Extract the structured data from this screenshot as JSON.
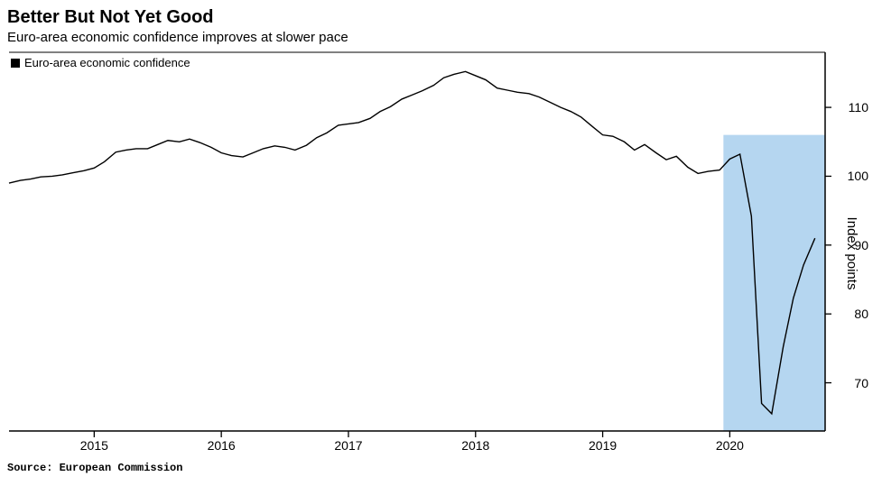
{
  "title": "Better But Not Yet Good",
  "subtitle": "Euro-area economic confidence improves at slower pace",
  "source": "Source: European Commission",
  "chart": {
    "type": "line",
    "legend_label": "Euro-area economic confidence",
    "y_axis_title": "Index points",
    "series_color": "#000000",
    "line_width": 1.4,
    "background_color": "#ffffff",
    "axis_color": "#000000",
    "tick_color": "#000000",
    "y_ticks": [
      70,
      80,
      90,
      100,
      110
    ],
    "y_min": 63,
    "y_max": 118,
    "x_ticks": [
      2015,
      2016,
      2017,
      2018,
      2019,
      2020
    ],
    "x_min": 2014.33,
    "x_max": 2020.75,
    "highlight": {
      "x_start": 2019.95,
      "x_end": 2020.75,
      "y_start": 63,
      "y_end": 106,
      "fill": "#a8cfed",
      "opacity": 0.85
    },
    "data_xy": [
      [
        2014.33,
        99.0
      ],
      [
        2014.42,
        99.4
      ],
      [
        2014.5,
        99.6
      ],
      [
        2014.58,
        99.9
      ],
      [
        2014.67,
        100.0
      ],
      [
        2014.75,
        100.2
      ],
      [
        2014.83,
        100.5
      ],
      [
        2014.92,
        100.8
      ],
      [
        2015.0,
        101.2
      ],
      [
        2015.08,
        102.1
      ],
      [
        2015.17,
        103.5
      ],
      [
        2015.25,
        103.8
      ],
      [
        2015.33,
        104.0
      ],
      [
        2015.42,
        104.0
      ],
      [
        2015.5,
        104.6
      ],
      [
        2015.58,
        105.2
      ],
      [
        2015.67,
        105.0
      ],
      [
        2015.75,
        105.4
      ],
      [
        2015.83,
        104.9
      ],
      [
        2015.92,
        104.2
      ],
      [
        2016.0,
        103.4
      ],
      [
        2016.08,
        103.0
      ],
      [
        2016.17,
        102.8
      ],
      [
        2016.25,
        103.4
      ],
      [
        2016.33,
        104.0
      ],
      [
        2016.42,
        104.4
      ],
      [
        2016.5,
        104.2
      ],
      [
        2016.58,
        103.8
      ],
      [
        2016.67,
        104.5
      ],
      [
        2016.75,
        105.6
      ],
      [
        2016.83,
        106.3
      ],
      [
        2016.92,
        107.4
      ],
      [
        2017.0,
        107.6
      ],
      [
        2017.08,
        107.8
      ],
      [
        2017.17,
        108.4
      ],
      [
        2017.25,
        109.4
      ],
      [
        2017.33,
        110.1
      ],
      [
        2017.42,
        111.2
      ],
      [
        2017.5,
        111.8
      ],
      [
        2017.58,
        112.4
      ],
      [
        2017.67,
        113.2
      ],
      [
        2017.75,
        114.3
      ],
      [
        2017.83,
        114.8
      ],
      [
        2017.92,
        115.2
      ],
      [
        2018.0,
        114.6
      ],
      [
        2018.08,
        114.0
      ],
      [
        2018.17,
        112.8
      ],
      [
        2018.25,
        112.5
      ],
      [
        2018.33,
        112.2
      ],
      [
        2018.42,
        112.0
      ],
      [
        2018.5,
        111.5
      ],
      [
        2018.58,
        110.8
      ],
      [
        2018.67,
        110.0
      ],
      [
        2018.75,
        109.4
      ],
      [
        2018.83,
        108.6
      ],
      [
        2018.92,
        107.2
      ],
      [
        2019.0,
        106.0
      ],
      [
        2019.08,
        105.8
      ],
      [
        2019.17,
        105.0
      ],
      [
        2019.25,
        103.8
      ],
      [
        2019.33,
        104.6
      ],
      [
        2019.42,
        103.4
      ],
      [
        2019.5,
        102.4
      ],
      [
        2019.58,
        102.9
      ],
      [
        2019.67,
        101.3
      ],
      [
        2019.75,
        100.4
      ],
      [
        2019.83,
        100.7
      ],
      [
        2019.92,
        100.9
      ],
      [
        2020.0,
        102.5
      ],
      [
        2020.08,
        103.2
      ],
      [
        2020.17,
        94.2
      ],
      [
        2020.25,
        67.0
      ],
      [
        2020.33,
        65.5
      ],
      [
        2020.42,
        75.2
      ],
      [
        2020.5,
        82.3
      ],
      [
        2020.58,
        87.1
      ],
      [
        2020.67,
        91.0
      ]
    ]
  }
}
